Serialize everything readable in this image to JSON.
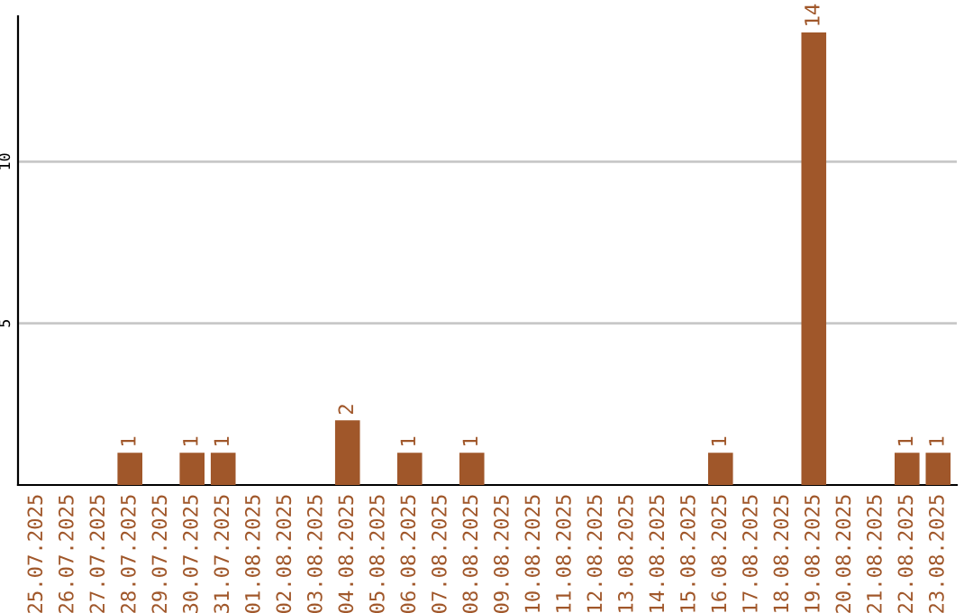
{
  "chart_data": {
    "type": "bar",
    "categories": [
      "25.07.2025",
      "26.07.2025",
      "27.07.2025",
      "28.07.2025",
      "29.07.2025",
      "30.07.2025",
      "31.07.2025",
      "01.08.2025",
      "02.08.2025",
      "03.08.2025",
      "04.08.2025",
      "05.08.2025",
      "06.08.2025",
      "07.08.2025",
      "08.08.2025",
      "09.08.2025",
      "10.08.2025",
      "11.08.2025",
      "12.08.2025",
      "13.08.2025",
      "14.08.2025",
      "15.08.2025",
      "16.08.2025",
      "17.08.2025",
      "18.08.2025",
      "19.08.2025",
      "20.08.2025",
      "21.08.2025",
      "22.08.2025",
      "23.08.2025"
    ],
    "values": [
      0,
      0,
      0,
      1,
      0,
      1,
      1,
      0,
      0,
      0,
      2,
      0,
      1,
      0,
      1,
      0,
      0,
      0,
      0,
      0,
      0,
      0,
      1,
      0,
      0,
      14,
      0,
      0,
      1,
      1
    ],
    "value_labels": [
      null,
      null,
      null,
      "1",
      null,
      "1",
      "1",
      null,
      null,
      null,
      "2",
      null,
      "1",
      null,
      "1",
      null,
      null,
      null,
      null,
      null,
      null,
      null,
      "1",
      null,
      null,
      "14",
      null,
      null,
      "1",
      "1"
    ],
    "color": "#a0572a",
    "ylim": [
      0,
      14.5
    ],
    "yticks": [
      5,
      10
    ],
    "grid": "y"
  }
}
